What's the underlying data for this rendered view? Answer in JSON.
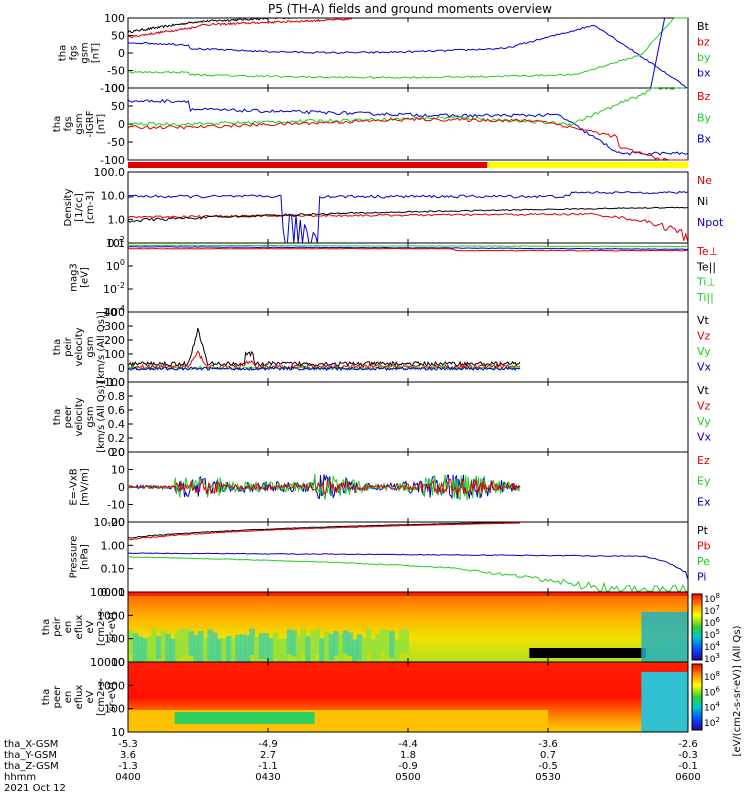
{
  "title": "P5 (TH-A) fields and ground moments overview",
  "colors": {
    "black": "#000000",
    "red": "#e00000",
    "green": "#22cc22",
    "blue": "#0000cc",
    "yellow": "#ffff00"
  },
  "chart_data": {
    "type": "line",
    "x_axis": {
      "ticks": [
        "0400",
        "0430",
        "0500",
        "0530",
        "0600"
      ],
      "tick_minutes": [
        0,
        30,
        60,
        90,
        120
      ],
      "range_minutes": [
        0,
        120
      ],
      "annotation_rows": [
        {
          "label": "tha_X-GSM",
          "values": [
            "-5.3",
            "-4.9",
            "-4.4",
            "-3.6",
            "-2.6"
          ]
        },
        {
          "label": "tha_Y-GSM",
          "values": [
            "3.6",
            "2.7",
            "1.8",
            "0.7",
            "-0.3"
          ]
        },
        {
          "label": "tha_Z-GSM",
          "values": [
            "-1.3",
            "-1.1",
            "-0.9",
            "-0.5",
            "-0.1"
          ]
        },
        {
          "label": "hhmm",
          "values": [
            "0400",
            "0430",
            "0500",
            "0530",
            "0600"
          ]
        }
      ],
      "date": "2021 Oct 12"
    },
    "panels": [
      {
        "ylabel": [
          "tha",
          "fgs",
          "gsm",
          "[nT]"
        ],
        "ylim": [
          -100,
          100
        ],
        "yticks": [
          "100",
          "50",
          "0",
          "-50",
          "-100"
        ],
        "legend": [
          {
            "name": "Bt",
            "color": "#000000"
          },
          {
            "name": "bz",
            "color": "#e00000"
          },
          {
            "name": "by",
            "color": "#22cc22"
          },
          {
            "name": "bx",
            "color": "#0000cc"
          }
        ]
      },
      {
        "ylabel": [
          "tha",
          "fgs",
          "gsm",
          "-IGRF",
          "[nT]"
        ],
        "ylim": [
          -120,
          100
        ],
        "yticks": [
          "100",
          "50",
          "0",
          "-50",
          "-100"
        ],
        "legend": [
          {
            "name": "Bz",
            "color": "#e00000"
          },
          {
            "name": "By",
            "color": "#22cc22"
          },
          {
            "name": "Bx",
            "color": "#0000cc"
          }
        ]
      },
      {
        "ylabel": [
          "Density",
          "[1/cc]",
          "[cm-3]"
        ],
        "scale": "log",
        "yticks": [
          "100.0",
          "10.0",
          "1.0",
          "0.1"
        ],
        "legend": [
          {
            "name": "Ne",
            "color": "#e00000"
          },
          {
            "name": "Ni",
            "color": "#000000"
          },
          {
            "name": "Npot",
            "color": "#0000cc"
          }
        ]
      },
      {
        "ylabel": [
          "mag3",
          "[eV]"
        ],
        "scale": "log",
        "yticks": [
          "10^2",
          "10^0",
          "10^-2",
          "10^-4"
        ],
        "legend": [
          {
            "name": "Te⊥",
            "color": "#e00000"
          },
          {
            "name": "Te||",
            "color": "#000000"
          },
          {
            "name": "Ti⊥",
            "color": "#22cc22"
          },
          {
            "name": "Ti||",
            "color": "#22cc22"
          }
        ]
      },
      {
        "ylabel": [
          "tha",
          "peir",
          "velocity",
          "gsm",
          "[km/s (All Qs)]"
        ],
        "ylim": [
          -100,
          400
        ],
        "yticks": [
          "400",
          "300",
          "200",
          "100",
          "0",
          "-100"
        ],
        "legend": [
          {
            "name": "Vt",
            "color": "#000000"
          },
          {
            "name": "Vz",
            "color": "#e00000"
          },
          {
            "name": "Vy",
            "color": "#22cc22"
          },
          {
            "name": "Vx",
            "color": "#0000cc"
          }
        ]
      },
      {
        "ylabel": [
          "tha",
          "peer",
          "velocity",
          "gsm",
          "[km/s (All Qs)]"
        ],
        "ylim": [
          0,
          1
        ],
        "yticks": [
          "1.0",
          "0.8",
          "0.6",
          "0.4",
          "0.2",
          "0.0"
        ],
        "legend": [
          {
            "name": "Vt",
            "color": "#000000"
          },
          {
            "name": "Vz",
            "color": "#e00000"
          },
          {
            "name": "Vy",
            "color": "#22cc22"
          },
          {
            "name": "Vx",
            "color": "#0000cc"
          }
        ]
      },
      {
        "ylabel": [
          "E=-VxB",
          "[mV/m]"
        ],
        "ylim": [
          -20,
          20
        ],
        "yticks": [
          "20",
          "10",
          "0",
          "-10",
          "-20"
        ],
        "legend": [
          {
            "name": "Ez",
            "color": "#e00000"
          },
          {
            "name": "Ey",
            "color": "#22cc22"
          },
          {
            "name": "Ex",
            "color": "#0000cc"
          }
        ]
      },
      {
        "ylabel": [
          "Pressure",
          "[nPa]"
        ],
        "scale": "log",
        "yticks": [
          "10.00",
          "1.00",
          "0.10",
          "0.01"
        ],
        "legend": [
          {
            "name": "Pt",
            "color": "#000000"
          },
          {
            "name": "Pb",
            "color": "#e00000"
          },
          {
            "name": "Pe",
            "color": "#22cc22"
          },
          {
            "name": "Pi",
            "color": "#0000cc"
          }
        ]
      },
      {
        "ylabel": [
          "tha",
          "peir",
          "en",
          "eflux",
          "eV",
          "[cm2-s-",
          "sr-eV]"
        ],
        "scale": "log",
        "yticks": [
          "10000",
          "1000",
          "100",
          "10"
        ],
        "colorbar_ticks": [
          "10^8",
          "10^7",
          "10^6",
          "10^5",
          "10^4",
          "10^3"
        ],
        "colorbar_label": "[eV/(cm2-s-sr-eV)] (All Qs)"
      },
      {
        "ylabel": [
          "tha",
          "peer",
          "en",
          "eflux",
          "eV",
          "[cm2-s-",
          "sr-eV]"
        ],
        "scale": "log",
        "yticks": [
          "10000",
          "1000",
          "100",
          "10"
        ],
        "colorbar_ticks": [
          "10^8",
          "10^6",
          "10^4",
          "10^2"
        ],
        "colorbar_label": "[eV/(cm2-s-sr-eV)] (All Qs)"
      }
    ],
    "state_bar": {
      "segments": [
        {
          "from_minutes": 0,
          "to_minutes": 77,
          "color": "#e00000"
        },
        {
          "from_minutes": 77,
          "to_minutes": 120,
          "color": "#ffff00"
        }
      ]
    },
    "bottom_colorbar_label": "[eV/(cm2-s-sr-eV)] (All Qs)"
  }
}
